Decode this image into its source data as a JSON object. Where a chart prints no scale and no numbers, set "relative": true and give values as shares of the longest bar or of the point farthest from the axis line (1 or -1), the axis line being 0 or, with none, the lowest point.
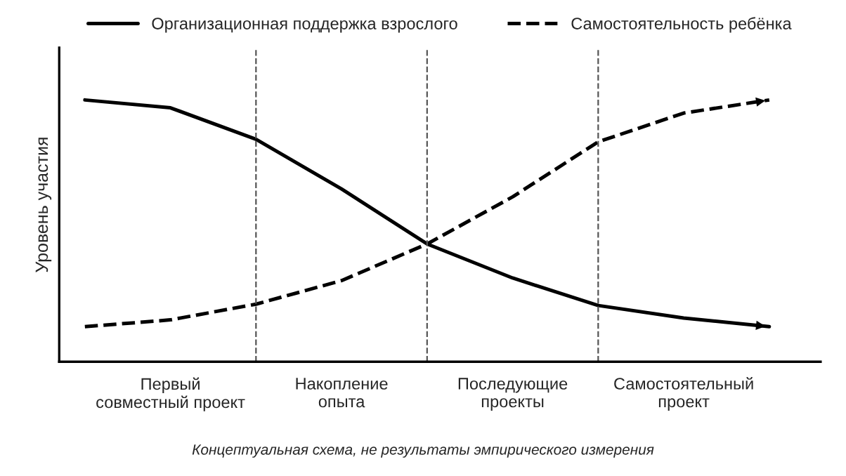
{
  "chart_data": {
    "type": "line",
    "relative": true,
    "ylabel": "Уровень участия",
    "categories": [
      null,
      "Первый\nсовместный проект",
      null,
      "Накопление\nопыта",
      null,
      "Последующие\nпроекты",
      null,
      "Самостоятельный\nпроект",
      null
    ],
    "series": [
      {
        "name": "Организационная поддержка взрослого",
        "color": "#000000",
        "line_style": "solid",
        "values": [
          1.0,
          0.97,
          0.85,
          0.66,
          0.45,
          0.32,
          0.215,
          0.167,
          0.134
        ]
      },
      {
        "name": "Самостоятельность ребёнка",
        "color": "#000000",
        "line_style": "dashed",
        "values": [
          0.134,
          0.16,
          0.22,
          0.31,
          0.45,
          0.63,
          0.84,
          0.95,
          1.0
        ]
      }
    ],
    "legend": "top",
    "grid": "x",
    "annotations": [
      "Концептуальная схема, не результаты эмпирического измерения"
    ]
  }
}
